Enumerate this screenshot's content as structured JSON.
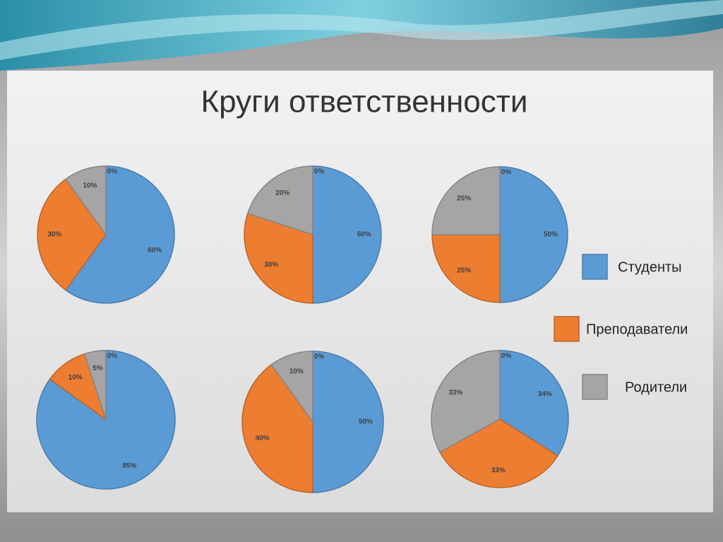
{
  "title": "Круги ответственности",
  "chart_data": [
    {
      "type": "pie",
      "categories": [
        "Студенты",
        "Преподаватели",
        "Родители",
        null
      ],
      "values": [
        60,
        30,
        10,
        0
      ],
      "value_labels": [
        "60%",
        "30%",
        "10%",
        "0%"
      ],
      "colors": [
        "#5b9bd5",
        "#ed7d31",
        "#a5a5a5",
        "#ffc000"
      ]
    },
    {
      "type": "pie",
      "categories": [
        "Студенты",
        "Преподаватели",
        "Родители",
        null
      ],
      "values": [
        50,
        30,
        20,
        0
      ],
      "value_labels": [
        "50%",
        "30%",
        "20%",
        "0%"
      ],
      "colors": [
        "#5b9bd5",
        "#ed7d31",
        "#a5a5a5",
        "#ffc000"
      ]
    },
    {
      "type": "pie",
      "categories": [
        "Студенты",
        "Преподаватели",
        "Родители",
        null
      ],
      "values": [
        50,
        25,
        25,
        0
      ],
      "value_labels": [
        "50%",
        "25%",
        "25%",
        "0%"
      ],
      "colors": [
        "#5b9bd5",
        "#ed7d31",
        "#a5a5a5",
        "#ffc000"
      ]
    },
    {
      "type": "pie",
      "categories": [
        "Студенты",
        "Преподаватели",
        "Родители",
        null
      ],
      "values": [
        85,
        10,
        5,
        0
      ],
      "value_labels": [
        "85%",
        "10%",
        "5%",
        "0%"
      ],
      "colors": [
        "#5b9bd5",
        "#ed7d31",
        "#a5a5a5",
        "#ffc000"
      ]
    },
    {
      "type": "pie",
      "categories": [
        "Студенты",
        "Преподаватели",
        "Родители",
        null
      ],
      "values": [
        50,
        40,
        10,
        0
      ],
      "value_labels": [
        "50%",
        "40%",
        "10%",
        "0%"
      ],
      "colors": [
        "#5b9bd5",
        "#ed7d31",
        "#a5a5a5",
        "#ffc000"
      ]
    },
    {
      "type": "pie",
      "categories": [
        "Студенты",
        "Преподаватели",
        "Родители",
        null
      ],
      "values": [
        34,
        33,
        33,
        0
      ],
      "value_labels": [
        "34%",
        "33%",
        "33%",
        "0%"
      ],
      "colors": [
        "#5b9bd5",
        "#ed7d31",
        "#a5a5a5",
        "#ffc000"
      ]
    }
  ]
}
